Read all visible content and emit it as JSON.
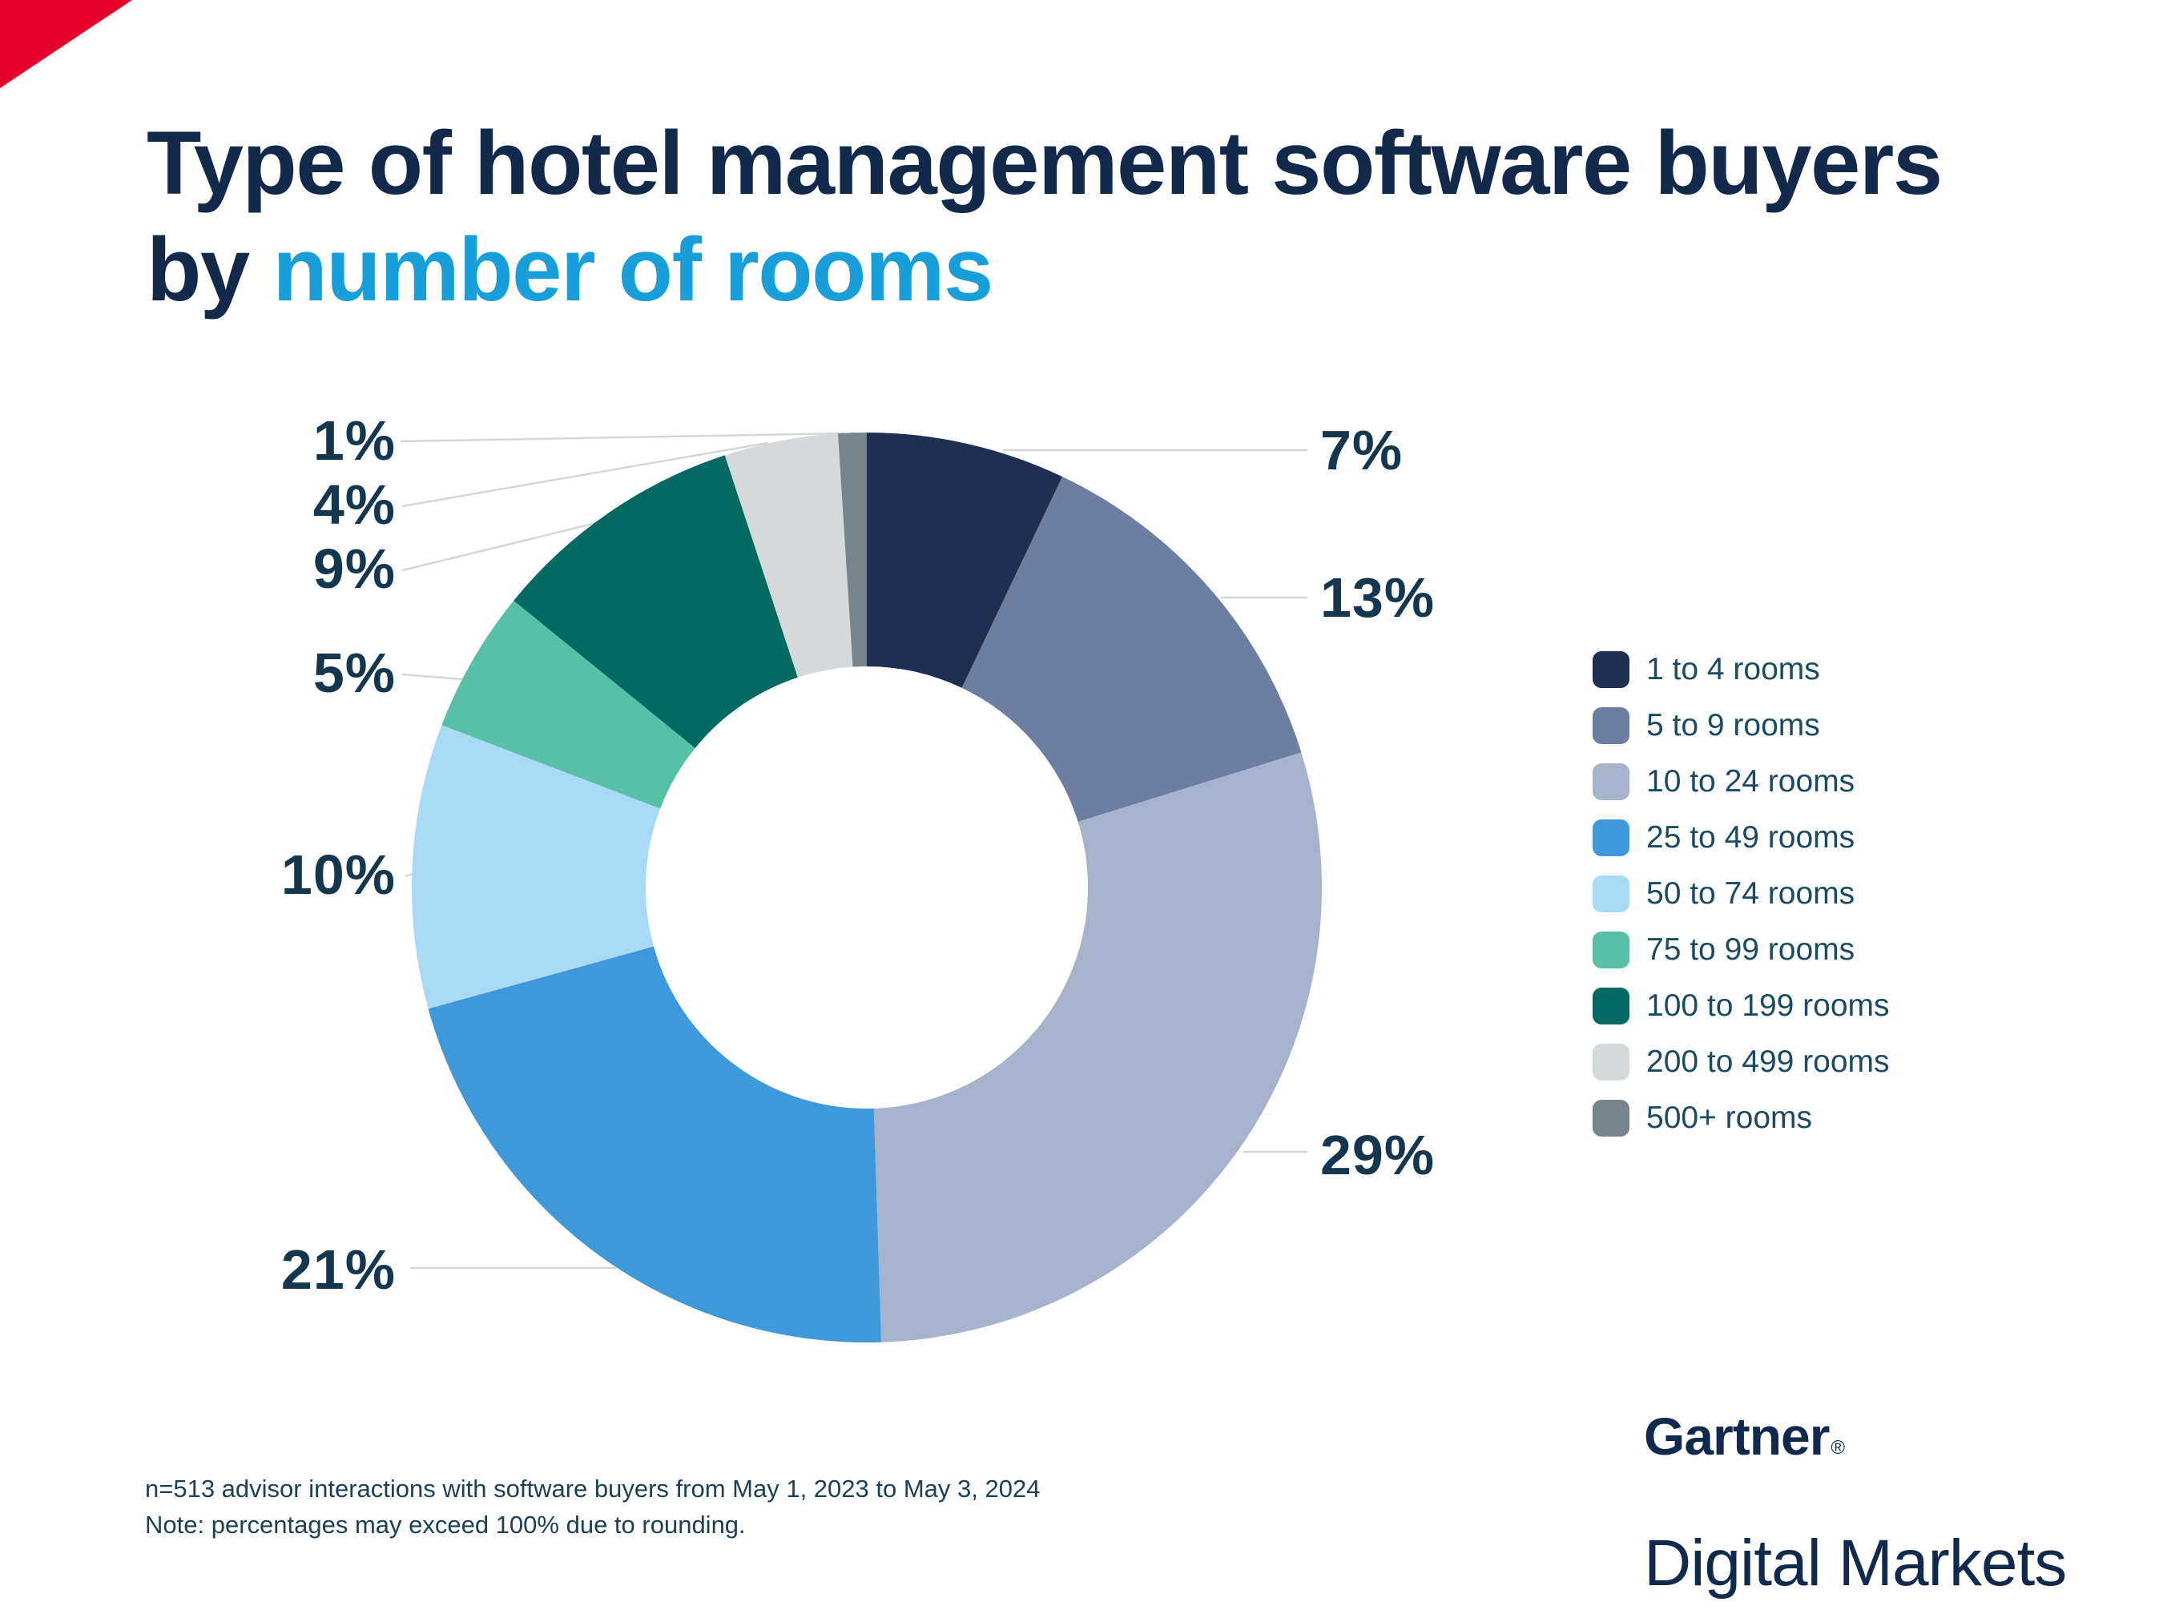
{
  "page": {
    "background_color": "#ffffff",
    "accent_corner_color": "#e4002b"
  },
  "title": {
    "line1": "Type of hotel management software buyers",
    "line2_prefix": "by ",
    "line2_highlight": "number of rooms",
    "color_primary": "#12294b",
    "color_highlight": "#189ed8"
  },
  "chart_data": {
    "type": "pie",
    "subtype": "donut",
    "title": "Type of hotel management software buyers by number of rooms",
    "legend_position": "right",
    "unit": "%",
    "start_angle_deg": 0,
    "hole_ratio": 0.486,
    "categories": [
      "1 to 4 rooms",
      "5 to 9 rooms",
      "10 to 24 rooms",
      "25 to 49 rooms",
      "50 to 74 rooms",
      "75 to 99 rooms",
      "100 to 199 rooms",
      "200 to 499 rooms",
      "500+ rooms"
    ],
    "values": [
      7,
      13,
      29,
      21,
      10,
      5,
      9,
      4,
      1
    ],
    "labels": [
      "7%",
      "13%",
      "29%",
      "21%",
      "10%",
      "5%",
      "9%",
      "4%",
      "1%"
    ],
    "colors": [
      "#1f2e52",
      "#6d7ea2",
      "#a7b2cc",
      "#3f99d9",
      "#a9daf5",
      "#58c0a7",
      "#046a61",
      "#d6d9da",
      "#77848b"
    ],
    "label_color": "#14374f",
    "leader_line_color": "#d6d6d6"
  },
  "notes": {
    "line1": "n=513 advisor interactions with software buyers from May 1, 2023 to May 3, 2024",
    "line2": "Note: percentages may exceed 100% due to rounding."
  },
  "branding": {
    "name": "Gartner",
    "registered_mark": "®",
    "division": "Digital Markets"
  }
}
